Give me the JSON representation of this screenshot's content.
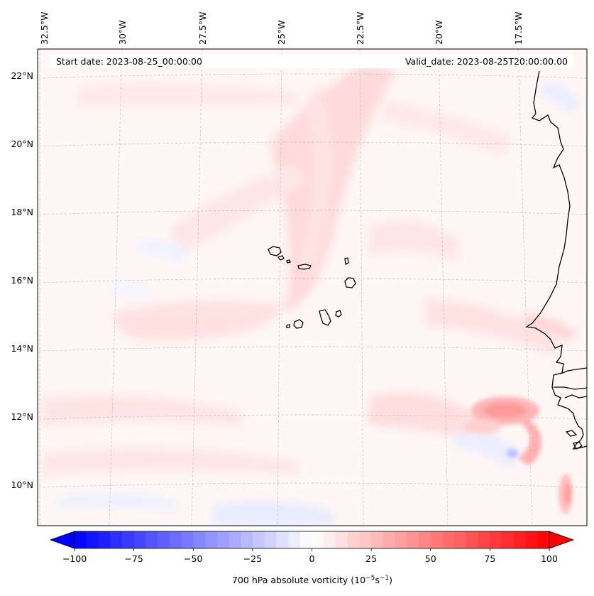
{
  "map": {
    "start_date_text": "Start date: 2023-08-25_00:00:00",
    "valid_date_text": "Valid_date: 2023-08-25T20:00:00.00",
    "lon_labels": [
      "32.5°W",
      "30°W",
      "27.5°W",
      "25°W",
      "22.5°W",
      "20°W",
      "17.5°W"
    ],
    "lat_labels": [
      "22°N",
      "20°N",
      "18°N",
      "16°N",
      "14°N",
      "12°N",
      "10°N"
    ],
    "features": [
      "cape-verde-islands",
      "west-africa-coastline"
    ]
  },
  "colorbar": {
    "label_prefix": "700 hPa absolute vorticity (10",
    "label_exp1": "−5",
    "label_mid": "s",
    "label_exp2": "−1",
    "label_suffix": ")",
    "ticks": [
      "−100",
      "−75",
      "−50",
      "−25",
      "0",
      "25",
      "50",
      "75",
      "100"
    ],
    "vmin": -100,
    "vmax": 100,
    "colormap": "bwr",
    "low_color": "#0000ff",
    "mid_color": "#ffffff",
    "high_color": "#ff0000"
  }
}
